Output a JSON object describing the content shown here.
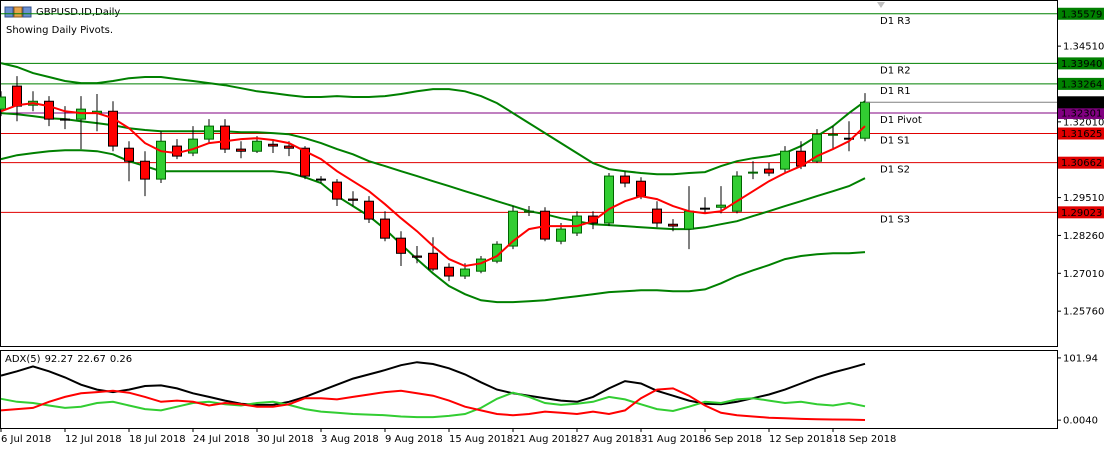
{
  "chart_data": {
    "type": "candlestick",
    "title": "GBPUSD.ID,Daily",
    "subtitle": "Showing Daily Pivots.",
    "categories": [
      "6 Jul 2018",
      null,
      null,
      null,
      "12 Jul 2018",
      null,
      null,
      null,
      "18 Jul 2018",
      null,
      null,
      null,
      "24 Jul 2018",
      null,
      null,
      null,
      "30 Jul 2018",
      null,
      null,
      null,
      "3 Aug 2018",
      null,
      null,
      null,
      "9 Aug 2018",
      null,
      null,
      null,
      "15 Aug 2018",
      null,
      null,
      null,
      "21 Aug 2018",
      null,
      null,
      null,
      "27 Aug 2018",
      null,
      null,
      null,
      "31 Aug 2018",
      null,
      null,
      null,
      "6 Sep 2018",
      null,
      null,
      null,
      "12 Sep 2018",
      null,
      null,
      null,
      "18 Sep 2018",
      null,
      null
    ],
    "ohlc": {
      "open": [
        1.3243,
        1.3319,
        1.3256,
        1.3269,
        1.321,
        1.321,
        1.323,
        1.3236,
        1.3114,
        1.3071,
        1.3012,
        1.3121,
        1.3098,
        1.3144,
        1.3187,
        1.3111,
        1.3104,
        1.3127,
        1.3121,
        1.3114,
        1.3012,
        1.3002,
        1.2946,
        1.2939,
        1.288,
        1.2817,
        1.2758,
        1.2767,
        1.2721,
        1.2692,
        1.2708,
        1.2741,
        1.2791,
        1.2903,
        1.2906,
        1.2807,
        1.2834,
        1.289,
        1.2867,
        1.3022,
        1.3005,
        1.2913,
        1.2863,
        1.2847,
        1.2916,
        1.2919,
        1.2906,
        1.3032,
        1.3045,
        1.3045,
        1.3104,
        1.3071,
        1.3157,
        1.3147,
        1.3147
      ],
      "high": [
        1.3302,
        1.3352,
        1.3302,
        1.3286,
        1.3253,
        1.3286,
        1.3293,
        1.3269,
        1.3137,
        1.3104,
        1.317,
        1.3144,
        1.3187,
        1.321,
        1.321,
        1.3137,
        1.3154,
        1.3144,
        1.3137,
        1.3121,
        1.3022,
        1.3012,
        1.2972,
        1.2956,
        1.2906,
        1.284,
        1.2791,
        1.282,
        1.2734,
        1.2734,
        1.2758,
        1.2807,
        1.2923,
        1.2923,
        1.2919,
        1.2867,
        1.2906,
        1.2906,
        1.3032,
        1.3038,
        1.3018,
        1.2939,
        1.288,
        1.2989,
        1.2952,
        1.2989,
        1.3038,
        1.3071,
        1.3065,
        1.3121,
        1.3137,
        1.3177,
        1.3187,
        1.3203,
        1.3296
      ],
      "low": [
        1.322,
        1.3203,
        1.3236,
        1.3187,
        1.3177,
        1.3111,
        1.317,
        1.3104,
        1.3005,
        1.2956,
        1.2999,
        1.3078,
        1.3088,
        1.3131,
        1.3098,
        1.3081,
        1.3098,
        1.3098,
        1.3088,
        1.3012,
        1.2999,
        1.2923,
        1.2923,
        1.2867,
        1.2807,
        1.2725,
        1.2734,
        1.2708,
        1.2675,
        1.2682,
        1.2701,
        1.2734,
        1.2781,
        1.289,
        1.2807,
        1.2797,
        1.2824,
        1.2847,
        1.2857,
        1.2985,
        1.2946,
        1.2853,
        1.284,
        1.2781,
        1.2899,
        1.2899,
        1.2899,
        1.3012,
        1.3022,
        1.3032,
        1.3045,
        1.3065,
        1.3111,
        1.3104,
        1.3137
      ],
      "close": [
        1.3283,
        1.3253,
        1.3269,
        1.321,
        1.3207,
        1.3243,
        1.3236,
        1.3121,
        1.3071,
        1.3012,
        1.3137,
        1.3088,
        1.3144,
        1.3187,
        1.3111,
        1.3104,
        1.3137,
        1.3121,
        1.3114,
        1.3022,
        1.3009,
        1.2946,
        1.2942,
        1.288,
        1.2817,
        1.2767,
        1.2754,
        1.2715,
        1.2692,
        1.2715,
        1.2748,
        1.2797,
        1.2906,
        1.2906,
        1.2814,
        1.2847,
        1.289,
        1.2867,
        1.3022,
        1.2999,
        1.2956,
        1.2867,
        1.2857,
        1.2906,
        1.2913,
        1.2926,
        1.3022,
        1.3035,
        1.3032,
        1.3104,
        1.3055,
        1.316,
        1.316,
        1.3144,
        1.32656
      ]
    },
    "up_color": "#32cd32",
    "down_color": "#ff0000",
    "overlays": [
      {
        "color": "#008000",
        "values": [
          1.3395,
          1.3382,
          1.3362,
          1.3349,
          1.3336,
          1.3329,
          1.3329,
          1.3336,
          1.3345,
          1.3349,
          1.3349,
          1.3342,
          1.3336,
          1.3329,
          1.3322,
          1.3312,
          1.3302,
          1.3296,
          1.3289,
          1.3283,
          1.3283,
          1.3286,
          1.3283,
          1.3283,
          1.3286,
          1.3293,
          1.3302,
          1.3309,
          1.3309,
          1.3302,
          1.3286,
          1.3263,
          1.323,
          1.3197,
          1.3164,
          1.3131,
          1.3098,
          1.3065,
          1.3045,
          1.3038,
          1.3032,
          1.3028,
          1.3028,
          1.3032,
          1.3035,
          1.3055,
          1.3071,
          1.3081,
          1.3088,
          1.3098,
          1.3121,
          1.3154,
          1.3187,
          1.323,
          1.3269
        ]
      },
      {
        "color": "#008000",
        "values": [
          1.323,
          1.3226,
          1.322,
          1.3213,
          1.321,
          1.3203,
          1.3197,
          1.319,
          1.318,
          1.3174,
          1.317,
          1.317,
          1.317,
          1.317,
          1.317,
          1.3167,
          1.3167,
          1.3164,
          1.316,
          1.3147,
          1.3131,
          1.3111,
          1.3094,
          1.3071,
          1.3055,
          1.3038,
          1.3022,
          1.3005,
          1.2989,
          1.2972,
          1.2956,
          1.2939,
          1.2923,
          1.2906,
          1.2896,
          1.2883,
          1.2873,
          1.2863,
          1.286,
          1.2857,
          1.2853,
          1.285,
          1.2847,
          1.2847,
          1.2853,
          1.2863,
          1.2873,
          1.289,
          1.2906,
          1.2923,
          1.2939,
          1.2956,
          1.2972,
          1.2989,
          1.3015
        ]
      },
      {
        "color": "#008000",
        "values": [
          1.3078,
          1.3091,
          1.3098,
          1.3104,
          1.3107,
          1.3107,
          1.3104,
          1.3094,
          1.3071,
          1.3055,
          1.3038,
          1.3038,
          1.3038,
          1.3038,
          1.3038,
          1.3038,
          1.3038,
          1.3038,
          1.3032,
          1.3018,
          1.2999,
          1.2956,
          1.2923,
          1.289,
          1.2847,
          1.2797,
          1.2748,
          1.2701,
          1.2659,
          1.2632,
          1.2612,
          1.2606,
          1.2606,
          1.2609,
          1.2612,
          1.2619,
          1.2625,
          1.2632,
          1.2639,
          1.2642,
          1.2645,
          1.2645,
          1.2642,
          1.2642,
          1.2648,
          1.2668,
          1.2692,
          1.2711,
          1.2728,
          1.2748,
          1.2758,
          1.2764,
          1.2767,
          1.2767,
          1.2771
        ]
      },
      {
        "color": "#ff0000",
        "values": [
          1.3236,
          1.3256,
          1.3263,
          1.3253,
          1.3236,
          1.323,
          1.323,
          1.3213,
          1.318,
          1.3131,
          1.3104,
          1.3098,
          1.3111,
          1.3131,
          1.3137,
          1.3144,
          1.3147,
          1.3141,
          1.3131,
          1.3104,
          1.3078,
          1.3038,
          1.3005,
          1.2972,
          1.2929,
          1.2883,
          1.284,
          1.2791,
          1.2748,
          1.2725,
          1.2734,
          1.2758,
          1.2807,
          1.2847,
          1.2857,
          1.2857,
          1.2857,
          1.2873,
          1.2913,
          1.2939,
          1.2956,
          1.2946,
          1.2923,
          1.2906,
          1.2899,
          1.2906,
          1.2939,
          1.2972,
          1.3005,
          1.3032,
          1.3055,
          1.3088,
          1.3111,
          1.3137,
          1.3187
        ]
      }
    ],
    "ylim": [
      1.2461,
      1.36
    ],
    "yticks": [
      {
        "value": 1.3451,
        "label": "1.34510"
      },
      {
        "value": 1.3201,
        "label": "1.32010"
      },
      {
        "value": 1.2951,
        "label": "1.29510"
      },
      {
        "value": 1.2826,
        "label": "1.28260"
      },
      {
        "value": 1.2701,
        "label": "1.27010"
      },
      {
        "value": 1.2576,
        "label": "1.25760"
      }
    ],
    "pivots": [
      {
        "name": "D1 R3",
        "value": 1.35579,
        "color": "#008000"
      },
      {
        "name": "D1 R2",
        "value": 1.3394,
        "value_label": "1.33940",
        "color": "#008000"
      },
      {
        "name": "D1 R1",
        "value": 1.33264,
        "color": "#008000"
      },
      {
        "name": "D1 Pivot",
        "value": 1.32301,
        "color": "#800080"
      },
      {
        "name": "D1 S1",
        "value": 1.31625,
        "color": "#e00000"
      },
      {
        "name": "D1 S2",
        "value": 1.30662,
        "color": "#e00000"
      },
      {
        "name": "D1 S3",
        "value": 1.29023,
        "color": "#e00000"
      }
    ],
    "indicator": {
      "type": "line",
      "title": "ADX(5)",
      "ylim": [
        -12.9,
        113.3
      ],
      "yticks": [
        101.94,
        {
          "value": 0.004,
          "label": "0.0040"
        }
      ],
      "series": [
        {
          "color": "#000000",
          "values": [
            73,
            80,
            88,
            80,
            70,
            58,
            50,
            46,
            50,
            56,
            57,
            52,
            44,
            38,
            32,
            27,
            25,
            25,
            30,
            38,
            48,
            58,
            68,
            75,
            82,
            90,
            95,
            92,
            85,
            75,
            62,
            50,
            44,
            40,
            36,
            32,
            30,
            38,
            52,
            64,
            60,
            48,
            40,
            32,
            27,
            26,
            30,
            36,
            42,
            50,
            60,
            70,
            78,
            85,
            92.27
          ]
        },
        {
          "color": "#32cd32",
          "values": [
            35,
            30,
            28,
            24,
            20,
            22,
            28,
            30,
            24,
            18,
            16,
            22,
            28,
            30,
            26,
            24,
            28,
            30,
            25,
            18,
            14,
            12,
            10,
            9,
            8,
            6,
            5,
            5,
            7,
            10,
            20,
            35,
            45,
            38,
            28,
            25,
            27,
            30,
            38,
            34,
            26,
            18,
            15,
            22,
            30,
            28,
            34,
            36,
            32,
            28,
            30,
            26,
            24,
            28,
            22.67
          ]
        },
        {
          "color": "#ff0000",
          "values": [
            16,
            18,
            20,
            30,
            38,
            44,
            46,
            48,
            45,
            38,
            30,
            32,
            30,
            24,
            28,
            26,
            22,
            22,
            26,
            36,
            36,
            34,
            38,
            42,
            46,
            48,
            44,
            40,
            32,
            22,
            16,
            10,
            8,
            10,
            14,
            12,
            10,
            14,
            10,
            16,
            36,
            50,
            52,
            40,
            24,
            12,
            8,
            6,
            4,
            3,
            2,
            1.5,
            1,
            0.8,
            0.26
          ]
        }
      ]
    }
  }
}
